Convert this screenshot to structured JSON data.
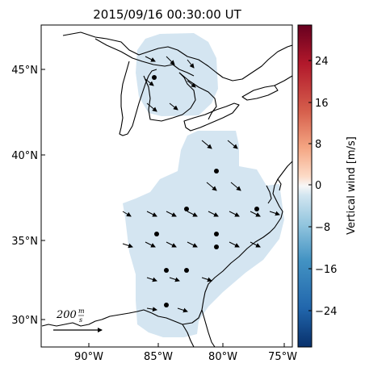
{
  "title": "2015/09/16 00:30:00 UT",
  "lat_ticks": [
    "30°N",
    "35°N",
    "40°N",
    "45°N"
  ],
  "lon_ticks": [
    "90°W",
    "85°W",
    "80°W",
    "75°W"
  ],
  "colorbar": {
    "label": "Vertical wind [m/s]",
    "ticks": [
      "24",
      "16",
      "8",
      "0",
      "−8",
      "−16",
      "−24"
    ],
    "value": -8,
    "range": [
      -30,
      30
    ]
  },
  "scale_label": "200",
  "scale_unit_num": "m",
  "scale_unit_den": "s",
  "colors": {
    "coverage": "#d4e5f1",
    "arrow": "#000000"
  }
}
